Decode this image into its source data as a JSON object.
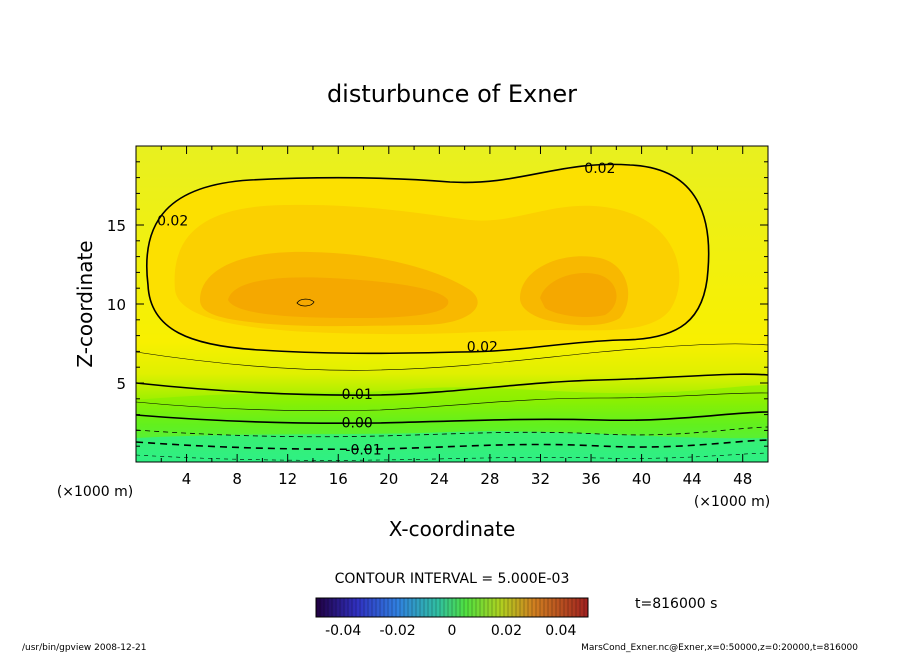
{
  "chart_data": {
    "type": "contour",
    "title": "disturbunce of Exner",
    "xlabel": "X-coordinate",
    "ylabel": "Z-coordinate",
    "x_unit_note": "(×1000 m)",
    "y_unit_note": "(×1000 m)",
    "xlim": [
      0,
      50
    ],
    "ylim": [
      0,
      20
    ],
    "x_ticks": [
      4,
      8,
      12,
      16,
      20,
      24,
      28,
      32,
      36,
      40,
      44,
      48
    ],
    "y_ticks": [
      5,
      10,
      15
    ],
    "contour_interval_text": "CONTOUR INTERVAL = 5.000E-03",
    "contour_labels": [
      {
        "text": "0.02",
        "x": 36.7,
        "y": 18.6
      },
      {
        "text": "0.02",
        "x": 2.9,
        "y": 15.3
      },
      {
        "text": "0.02",
        "x": 27.4,
        "y": 7.3
      },
      {
        "text": "0.01",
        "x": 17.5,
        "y": 4.3
      },
      {
        "text": "0.00",
        "x": 17.5,
        "y": 2.5
      },
      {
        "text": "-0.01",
        "x": 18.0,
        "y": 0.8
      }
    ],
    "colorbar": {
      "min": -0.05,
      "max": 0.05,
      "tick_labels": [
        "-0.04",
        "-0.02",
        "0",
        "0.02",
        "0.04"
      ],
      "tick_values": [
        -0.04,
        -0.02,
        0,
        0.02,
        0.04
      ]
    },
    "time_label": "t=816000 s",
    "footer_left": "/usr/bin/gpview   2008-12-21",
    "footer_right": "MarsCond_Exner.nc@Exner,x=0:50000,z=0:20000,t=816000"
  }
}
